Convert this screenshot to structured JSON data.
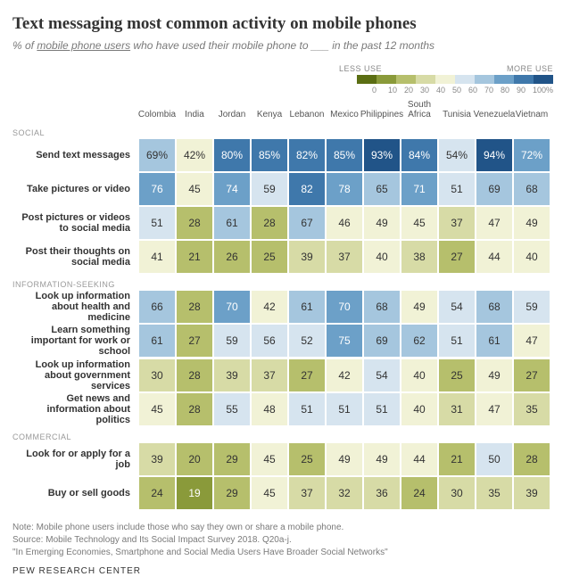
{
  "title": "Text messaging most common activity on mobile phones",
  "subtitle_prefix": "% of ",
  "subtitle_ul": "mobile phone users",
  "subtitle_suffix": " who have used their mobile phone to ___ in the past 12 months",
  "legend": {
    "less": "LESS USE",
    "more": "MORE USE",
    "ticks": [
      "0",
      "10",
      "20",
      "30",
      "40",
      "50",
      "60",
      "70",
      "80",
      "90",
      "100%"
    ],
    "colors": [
      "#5b6e13",
      "#8a9a3a",
      "#b6bf6c",
      "#d7dba6",
      "#f1f2d6",
      "#d6e4ef",
      "#a5c6de",
      "#6ca0c8",
      "#3f78ab",
      "#215488"
    ]
  },
  "columns": [
    "Colombia",
    "India",
    "Jordan",
    "Kenya",
    "Lebanon",
    "Mexico",
    "Philippines",
    "South Africa",
    "Tunisia",
    "Venezuela",
    "Vietnam"
  ],
  "color_scale": {
    "breaks": [
      0,
      10,
      20,
      30,
      40,
      50,
      60,
      70,
      80,
      90,
      101
    ],
    "colors": [
      "#5b6e13",
      "#8a9a3a",
      "#b6bf6c",
      "#d7dba6",
      "#f1f2d6",
      "#d6e4ef",
      "#a5c6de",
      "#6ca0c8",
      "#3f78ab",
      "#215488"
    ],
    "text_colors": [
      "#ffffff",
      "#ffffff",
      "#333333",
      "#333333",
      "#333333",
      "#333333",
      "#333333",
      "#ffffff",
      "#ffffff",
      "#ffffff"
    ]
  },
  "sections": [
    {
      "label": "SOCIAL",
      "rows": [
        {
          "label": "Send text messages",
          "bold": true,
          "pct": true,
          "values": [
            69,
            42,
            80,
            85,
            82,
            85,
            93,
            84,
            54,
            94,
            72
          ]
        },
        {
          "label": "Take pictures or video",
          "bold": true,
          "values": [
            76,
            45,
            74,
            59,
            82,
            78,
            65,
            71,
            51,
            69,
            68
          ]
        },
        {
          "label": "Post pictures or videos to social media",
          "bold": true,
          "values": [
            51,
            28,
            61,
            28,
            67,
            46,
            49,
            45,
            37,
            47,
            49
          ]
        },
        {
          "label": "Post their thoughts on social media",
          "bold": true,
          "values": [
            41,
            21,
            26,
            25,
            39,
            37,
            40,
            38,
            27,
            44,
            40
          ]
        }
      ]
    },
    {
      "label": "INFORMATION-SEEKING",
      "rows": [
        {
          "label": "Look up information about health and medicine",
          "bold": true,
          "values": [
            66,
            28,
            70,
            42,
            61,
            70,
            68,
            49,
            54,
            68,
            59
          ]
        },
        {
          "label": "Learn something important for work or school",
          "bold": true,
          "values": [
            61,
            27,
            59,
            56,
            52,
            75,
            69,
            62,
            51,
            61,
            47
          ]
        },
        {
          "label": "Look up information about government services",
          "bold": true,
          "values": [
            30,
            28,
            39,
            37,
            27,
            42,
            54,
            40,
            25,
            49,
            27
          ]
        },
        {
          "label": "Get news and information about politics",
          "bold": true,
          "values": [
            45,
            28,
            55,
            48,
            51,
            51,
            51,
            40,
            31,
            47,
            35
          ]
        }
      ]
    },
    {
      "label": "COMMERCIAL",
      "rows": [
        {
          "label": "Look for or apply for a job",
          "bold": true,
          "values": [
            39,
            20,
            29,
            45,
            25,
            49,
            49,
            44,
            21,
            50,
            28
          ]
        },
        {
          "label": "Buy or sell goods",
          "bold": true,
          "values": [
            24,
            19,
            29,
            45,
            37,
            32,
            36,
            24,
            30,
            35,
            39
          ]
        }
      ]
    }
  ],
  "footer": {
    "note": "Note: Mobile phone users include those who say they own or share a mobile phone.",
    "source": "Source: Mobile Technology and Its Social Impact Survey 2018. Q20a-j.",
    "report": "\"In Emerging Economies, Smartphone and Social Media Users Have Broader Social Networks\"",
    "brand": "PEW RESEARCH CENTER"
  }
}
